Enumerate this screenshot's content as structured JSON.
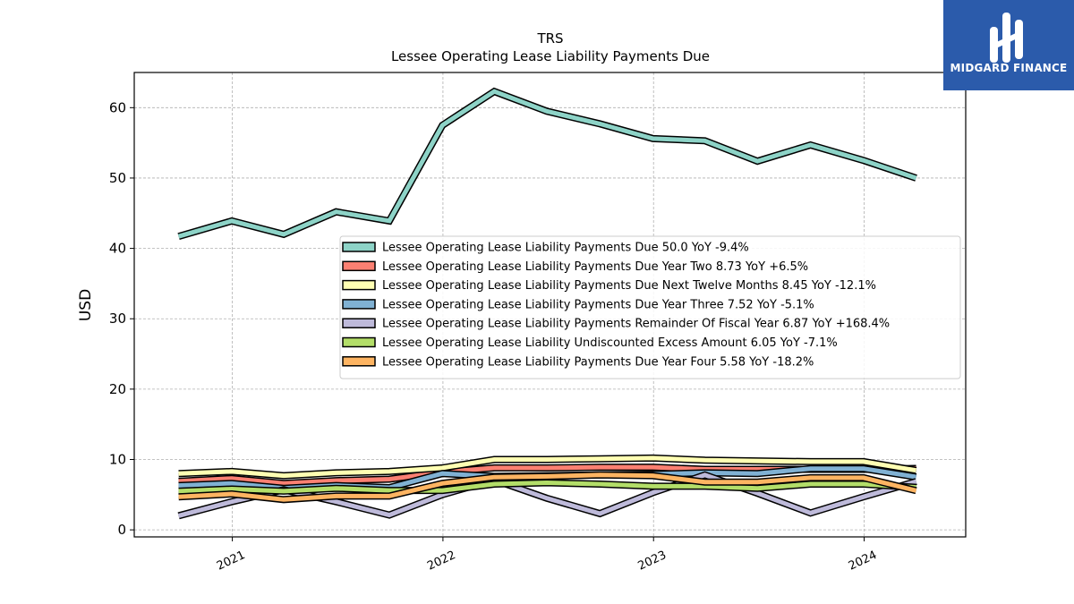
{
  "brand": {
    "name": "MIDGARD FINANCE",
    "color": "#2b5bab"
  },
  "chart_data": {
    "type": "line",
    "title": "TRS",
    "subtitle": "Lessee Operating Lease Liability Payments Due",
    "ylabel": "USD",
    "xlabel": "",
    "ylim": [
      -1,
      65
    ],
    "yticks": [
      0,
      10,
      20,
      30,
      40,
      50,
      60
    ],
    "xlim": [
      "2020-07-15",
      "2024-06-25"
    ],
    "xticks": [
      {
        "label": "2021",
        "date": "2021-01-01"
      },
      {
        "label": "2022",
        "date": "2022-01-01"
      },
      {
        "label": "2023",
        "date": "2023-01-01"
      },
      {
        "label": "2024",
        "date": "2024-01-01"
      }
    ],
    "grid": true,
    "legend_position": "center",
    "x": [
      "2020-09-30",
      "2020-12-31",
      "2021-03-31",
      "2021-06-30",
      "2021-09-30",
      "2021-12-31",
      "2022-03-31",
      "2022-06-30",
      "2022-09-30",
      "2022-12-31",
      "2023-03-31",
      "2023-06-30",
      "2023-09-30",
      "2023-12-31",
      "2024-03-31"
    ],
    "series": [
      {
        "name": "Lessee Operating Lease Liability Payments Due",
        "legend": "Lessee Operating Lease Liability Payments Due  50.0 YoY -9.4%",
        "color": "#8dd3c7",
        "values": [
          41.7,
          43.9,
          42.0,
          45.2,
          43.9,
          57.5,
          62.3,
          59.5,
          57.7,
          55.6,
          55.3,
          52.4,
          54.7,
          52.5,
          50.0
        ]
      },
      {
        "name": "Lessee Operating Lease Liability Payments Due Year Two",
        "legend": "Lessee Operating Lease Liability Payments Due Year Two  8.73 YoY +6.5%",
        "color": "#fb8072",
        "values": [
          6.9,
          7.3,
          6.6,
          7.0,
          7.2,
          8.2,
          8.8,
          8.8,
          8.9,
          8.9,
          8.6,
          8.6,
          8.6,
          8.6,
          8.73
        ]
      },
      {
        "name": "Lessee Operating Lease Liability Payments Due Next Twelve Months",
        "legend": "Lessee Operating Lease Liability Payments Due Next Twelve Months  8.45 YoY -12.1%",
        "color": "#ffffb3",
        "values": [
          8.0,
          8.3,
          7.7,
          8.1,
          8.3,
          8.8,
          10.0,
          10.0,
          10.1,
          10.2,
          9.9,
          9.8,
          9.7,
          9.7,
          8.45
        ]
      },
      {
        "name": "Lessee Operating Lease Liability Payments Due Year Three",
        "legend": "Lessee Operating Lease Liability Payments Due Year Three  7.52 YoY -5.1%",
        "color": "#80b1d3",
        "values": [
          6.3,
          6.6,
          5.9,
          6.3,
          6.0,
          8.0,
          7.6,
          7.7,
          7.8,
          7.9,
          8.1,
          8.0,
          8.7,
          8.7,
          7.52
        ]
      },
      {
        "name": "Lessee Operating Lease Liability Payments Remainder Of Fiscal Year",
        "legend": "Lessee Operating Lease Liability Payments Remainder Of Fiscal Year  6.87 YoY +168.4%",
        "color": "#bebada",
        "values": [
          2.0,
          4.0,
          5.7,
          4.0,
          2.1,
          5.0,
          7.1,
          4.5,
          2.3,
          5.3,
          7.8,
          5.2,
          2.4,
          4.7,
          6.87
        ]
      },
      {
        "name": "Lessee Operating Lease Liability Undiscounted Excess Amount",
        "legend": "Lessee Operating Lease Liability Undiscounted Excess Amount  6.05 YoY -7.1%",
        "color": "#b3de69",
        "values": [
          5.5,
          5.8,
          5.5,
          5.9,
          5.6,
          5.6,
          6.5,
          6.7,
          6.5,
          6.2,
          6.2,
          5.9,
          6.5,
          6.5,
          6.05
        ]
      },
      {
        "name": "Lessee Operating Lease Liability Payments Due Year Four",
        "legend": "Lessee Operating Lease Liability Payments Due Year Four  5.58 YoY -18.2%",
        "color": "#fdb462",
        "values": [
          4.7,
          5.1,
          4.3,
          4.8,
          4.8,
          6.6,
          7.5,
          7.6,
          7.8,
          7.7,
          6.8,
          6.8,
          7.4,
          7.4,
          5.58
        ]
      }
    ]
  }
}
